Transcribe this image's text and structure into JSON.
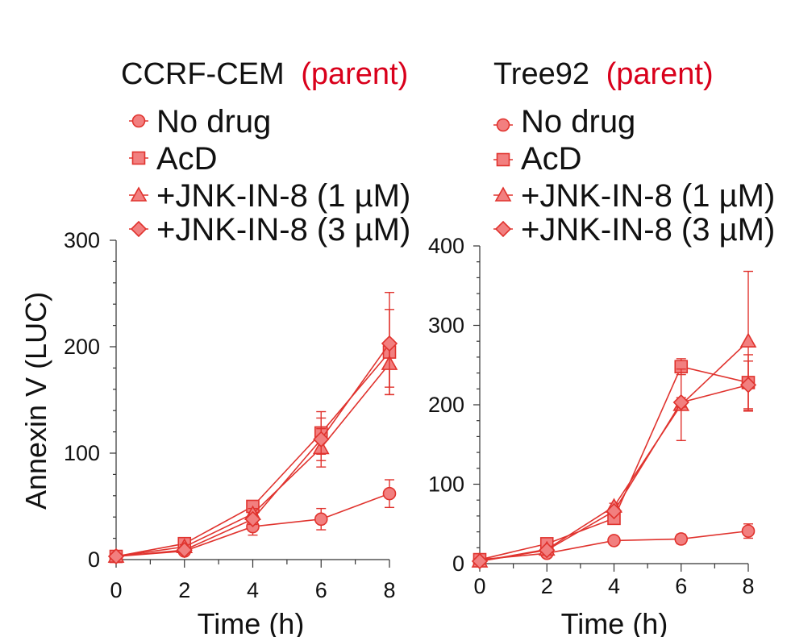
{
  "marker_fill": "#f27f7f",
  "line_color": "#e0332e",
  "chart_data": [
    {
      "type": "line",
      "title": "CCRF-CEM",
      "title_suffix": "(parent)",
      "title_suffix_color": "#d9001b",
      "ylabel": "Annexin V (LUC)",
      "xlabel": "Time (h)",
      "xlim": [
        0,
        8
      ],
      "ylim": [
        0,
        300
      ],
      "x_ticks": [
        "0",
        "2",
        "4",
        "6",
        "8"
      ],
      "y_ticks": [
        "0",
        "100",
        "200",
        "300"
      ],
      "x": [
        0,
        2,
        4,
        6,
        8
      ],
      "series": [
        {
          "name": "No drug",
          "marker": "circle",
          "values": [
            3,
            8,
            31,
            38,
            62
          ],
          "errors": [
            0,
            2,
            8,
            10,
            13
          ]
        },
        {
          "name": "AcD",
          "marker": "square",
          "values": [
            3,
            15,
            50,
            119,
            195
          ],
          "errors": [
            0,
            2,
            4,
            20,
            40
          ]
        },
        {
          "name": "+JNK-IN-8 (1 µM)",
          "marker": "triangle",
          "values": [
            3,
            12,
            43,
            105,
            184
          ],
          "errors": [
            0,
            2,
            5,
            18,
            22
          ]
        },
        {
          "name": "+JNK-IN-8 (3 µM)",
          "marker": "diamond",
          "values": [
            3,
            9,
            38,
            113,
            203
          ],
          "errors": [
            0,
            2,
            5,
            20,
            48
          ]
        }
      ]
    },
    {
      "type": "line",
      "title": "Tree92",
      "title_suffix": "(parent)",
      "title_suffix_color": "#d9001b",
      "ylabel": "",
      "xlabel": "Time (h)",
      "xlim": [
        0,
        8
      ],
      "ylim": [
        0,
        400
      ],
      "x_ticks": [
        "0",
        "2",
        "4",
        "6",
        "8"
      ],
      "y_ticks": [
        "0",
        "100",
        "200",
        "300",
        "400"
      ],
      "x": [
        0,
        2,
        4,
        6,
        8
      ],
      "series": [
        {
          "name": "No drug",
          "marker": "circle",
          "values": [
            5,
            13,
            29,
            31,
            41
          ],
          "errors": [
            0,
            2,
            3,
            6,
            9
          ]
        },
        {
          "name": "AcD",
          "marker": "square",
          "values": [
            5,
            25,
            57,
            248,
            228
          ],
          "errors": [
            0,
            2,
            4,
            10,
            35
          ]
        },
        {
          "name": "+JNK-IN-8 (1 µM)",
          "marker": "triangle",
          "values": [
            3,
            18,
            72,
            200,
            280
          ],
          "errors": [
            0,
            2,
            4,
            45,
            88
          ]
        },
        {
          "name": "+JNK-IN-8 (3 µM)",
          "marker": "diamond",
          "values": [
            3,
            17,
            66,
            203,
            225
          ],
          "errors": [
            0,
            2,
            4,
            6,
            30
          ]
        }
      ]
    }
  ]
}
